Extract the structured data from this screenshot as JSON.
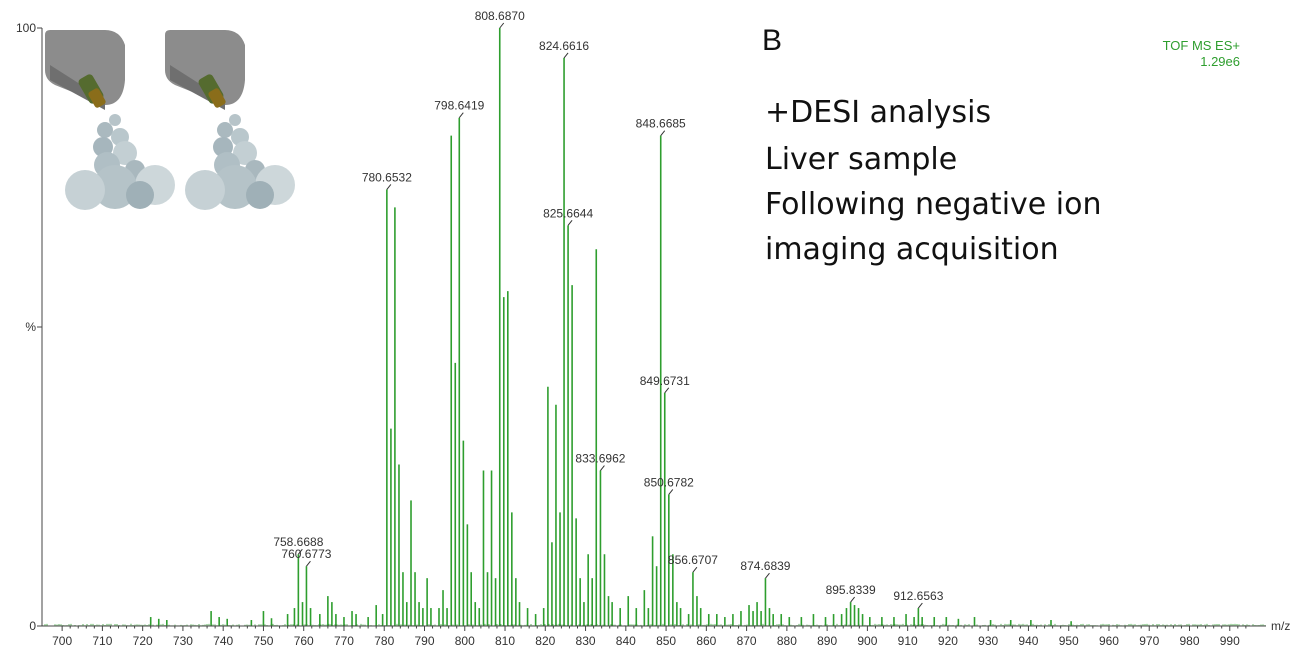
{
  "panel_label": "B",
  "instrument": {
    "mode": "TOF MS ES+",
    "intensity": "1.29e6"
  },
  "description": [
    "+DESI analysis",
    "Liver sample",
    "Following negative ion",
    "imaging acquisition"
  ],
  "colors": {
    "trace": "#2e9e2e",
    "axis": "#444444",
    "label": "#333333"
  },
  "icons": [
    "desi-sprayer-icon",
    "desi-sprayer-icon"
  ],
  "chart_data": {
    "type": "bar",
    "xlabel": "m/z",
    "ylabel": "%",
    "xlim": [
      695,
      999
    ],
    "ylim": [
      0,
      100
    ],
    "x_ticks": [
      700,
      710,
      720,
      730,
      740,
      750,
      760,
      770,
      780,
      790,
      800,
      810,
      820,
      830,
      840,
      850,
      860,
      870,
      880,
      890,
      900,
      910,
      920,
      930,
      940,
      950,
      960,
      970,
      980,
      990
    ],
    "y_tick_labels": [
      {
        "value": 0,
        "label": "0"
      },
      {
        "value": 50,
        "label": "%"
      },
      {
        "value": 100,
        "label": "100"
      }
    ],
    "grid": false,
    "labeled_peaks": [
      {
        "mz": 758.6688,
        "intensity": 12,
        "label": "758.6688"
      },
      {
        "mz": 760.6773,
        "intensity": 10,
        "label": "760.6773"
      },
      {
        "mz": 780.6532,
        "intensity": 73,
        "label": "780.6532"
      },
      {
        "mz": 798.6419,
        "intensity": 85,
        "label": "798.6419"
      },
      {
        "mz": 808.687,
        "intensity": 100,
        "label": "808.6870"
      },
      {
        "mz": 824.6616,
        "intensity": 95,
        "label": "824.6616"
      },
      {
        "mz": 825.6644,
        "intensity": 67,
        "label": "825.6644"
      },
      {
        "mz": 833.6962,
        "intensity": 26,
        "label": "833.6962"
      },
      {
        "mz": 848.6685,
        "intensity": 82,
        "label": "848.6685"
      },
      {
        "mz": 849.6731,
        "intensity": 39,
        "label": "849.6731"
      },
      {
        "mz": 850.6782,
        "intensity": 22,
        "label": "850.6782"
      },
      {
        "mz": 856.6707,
        "intensity": 9,
        "label": "856.6707"
      },
      {
        "mz": 874.6839,
        "intensity": 8,
        "label": "874.6839"
      },
      {
        "mz": 895.8339,
        "intensity": 4,
        "label": "895.8339"
      },
      {
        "mz": 912.6563,
        "intensity": 3,
        "label": "912.6563"
      }
    ],
    "peaks": [
      [
        722,
        1.5
      ],
      [
        724,
        1.2
      ],
      [
        726,
        1.0
      ],
      [
        737,
        2.5
      ],
      [
        739,
        1.5
      ],
      [
        741,
        1.2
      ],
      [
        747,
        1.0
      ],
      [
        750,
        2.5
      ],
      [
        752,
        1.3
      ],
      [
        756,
        2.0
      ],
      [
        757.7,
        3.0
      ],
      [
        758.67,
        12.0
      ],
      [
        759.7,
        4.0
      ],
      [
        760.68,
        10.0
      ],
      [
        761.7,
        3.0
      ],
      [
        764,
        2.0
      ],
      [
        766,
        5.0
      ],
      [
        767,
        4.0
      ],
      [
        768,
        2.0
      ],
      [
        770,
        1.5
      ],
      [
        772,
        2.5
      ],
      [
        773,
        2.0
      ],
      [
        776,
        1.5
      ],
      [
        778,
        3.5
      ],
      [
        779.6,
        2.0
      ],
      [
        780.65,
        73.0
      ],
      [
        781.66,
        33.0
      ],
      [
        782.65,
        70.0
      ],
      [
        783.66,
        27.0
      ],
      [
        784.65,
        9.0
      ],
      [
        785.6,
        4.0
      ],
      [
        786.65,
        21.0
      ],
      [
        787.65,
        9.0
      ],
      [
        788.65,
        4.0
      ],
      [
        789.6,
        3.0
      ],
      [
        790.65,
        8.0
      ],
      [
        791.6,
        3.0
      ],
      [
        793.6,
        3.0
      ],
      [
        794.6,
        6.0
      ],
      [
        795.6,
        3.0
      ],
      [
        796.64,
        82.0
      ],
      [
        797.64,
        44.0
      ],
      [
        798.64,
        85.0
      ],
      [
        799.65,
        31.0
      ],
      [
        800.65,
        17.0
      ],
      [
        801.6,
        9.0
      ],
      [
        802.6,
        4.0
      ],
      [
        803.6,
        3.0
      ],
      [
        804.65,
        26.0
      ],
      [
        805.65,
        9.0
      ],
      [
        806.65,
        26.0
      ],
      [
        807.65,
        8.0
      ],
      [
        808.69,
        100.0
      ],
      [
        809.69,
        55.0
      ],
      [
        810.69,
        56.0
      ],
      [
        811.69,
        19.0
      ],
      [
        812.69,
        8.0
      ],
      [
        813.6,
        4.0
      ],
      [
        815.6,
        3.0
      ],
      [
        817.6,
        2.0
      ],
      [
        819.6,
        3.0
      ],
      [
        820.65,
        40.0
      ],
      [
        821.65,
        14.0
      ],
      [
        822.65,
        37.0
      ],
      [
        823.66,
        19.0
      ],
      [
        824.66,
        95.0
      ],
      [
        825.66,
        67.0
      ],
      [
        826.66,
        57.0
      ],
      [
        827.66,
        18.0
      ],
      [
        828.66,
        8.0
      ],
      [
        829.6,
        4.0
      ],
      [
        830.65,
        12.0
      ],
      [
        831.65,
        8.0
      ],
      [
        832.66,
        63.0
      ],
      [
        833.7,
        26.0
      ],
      [
        834.7,
        12.0
      ],
      [
        835.7,
        5.0
      ],
      [
        836.6,
        4.0
      ],
      [
        838.6,
        3.0
      ],
      [
        840.6,
        5.0
      ],
      [
        842.6,
        3.0
      ],
      [
        844.6,
        6.0
      ],
      [
        845.6,
        3.0
      ],
      [
        846.65,
        15.0
      ],
      [
        847.65,
        10.0
      ],
      [
        848.67,
        82.0
      ],
      [
        849.67,
        39.0
      ],
      [
        850.68,
        22.0
      ],
      [
        851.68,
        12.0
      ],
      [
        852.68,
        4.0
      ],
      [
        853.6,
        3.0
      ],
      [
        855.6,
        2.0
      ],
      [
        856.67,
        9.0
      ],
      [
        857.67,
        5.0
      ],
      [
        858.6,
        3.0
      ],
      [
        860.6,
        2.0
      ],
      [
        862.6,
        2.0
      ],
      [
        864.6,
        1.5
      ],
      [
        866.6,
        2.0
      ],
      [
        868.6,
        2.5
      ],
      [
        870.6,
        3.5
      ],
      [
        871.6,
        2.5
      ],
      [
        872.6,
        4.0
      ],
      [
        873.6,
        2.5
      ],
      [
        874.68,
        8.0
      ],
      [
        875.68,
        3.0
      ],
      [
        876.6,
        2.0
      ],
      [
        878.6,
        2.0
      ],
      [
        880.6,
        1.5
      ],
      [
        883.6,
        1.5
      ],
      [
        886.6,
        2.0
      ],
      [
        889.6,
        1.5
      ],
      [
        891.6,
        2.0
      ],
      [
        893.6,
        2.0
      ],
      [
        894.8,
        3.0
      ],
      [
        895.83,
        4.0
      ],
      [
        896.8,
        3.5
      ],
      [
        897.8,
        3.0
      ],
      [
        898.8,
        2.0
      ],
      [
        900.6,
        1.5
      ],
      [
        903.6,
        1.5
      ],
      [
        906.6,
        1.5
      ],
      [
        909.6,
        2.0
      ],
      [
        911.6,
        1.5
      ],
      [
        912.66,
        3.0
      ],
      [
        913.6,
        1.5
      ],
      [
        916.6,
        1.5
      ],
      [
        919.6,
        1.5
      ],
      [
        922.6,
        1.2
      ],
      [
        926.6,
        1.5
      ],
      [
        930.6,
        1.0
      ],
      [
        935.6,
        1.0
      ],
      [
        940.6,
        1.0
      ],
      [
        945.6,
        1.0
      ],
      [
        950.6,
        0.8
      ]
    ]
  }
}
